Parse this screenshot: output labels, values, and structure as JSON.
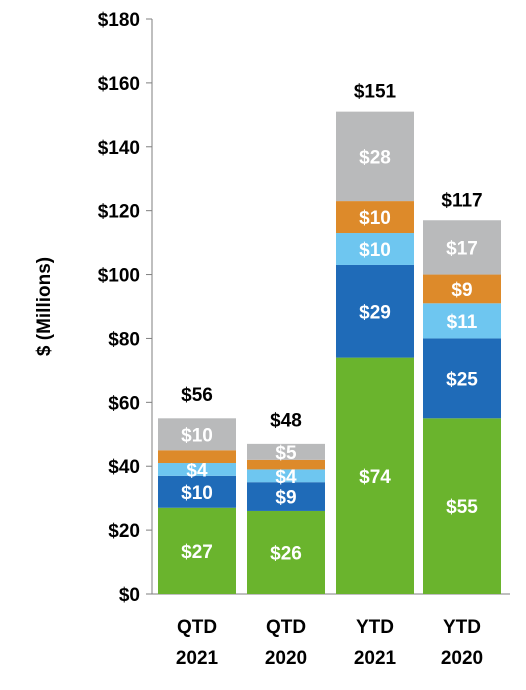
{
  "chart_data": {
    "type": "bar",
    "stacked": true,
    "ylabel": "$ (Millions)",
    "ylim": [
      0,
      180
    ],
    "yticks": [
      0,
      20,
      40,
      60,
      80,
      100,
      120,
      140,
      160,
      180
    ],
    "ytick_labels": [
      "$0",
      "$20",
      "$40",
      "$60",
      "$80",
      "$100",
      "$120",
      "$140",
      "$160",
      "$180"
    ],
    "grid": false,
    "categories": [
      [
        "QTD",
        "2021"
      ],
      [
        "QTD",
        "2020"
      ],
      [
        "YTD",
        "2021"
      ],
      [
        "YTD",
        "2020"
      ]
    ],
    "series": [
      {
        "color": "#6ab42d",
        "values": [
          27,
          26,
          74,
          55
        ],
        "labels": [
          "$27",
          "$26",
          "$74",
          "$55"
        ]
      },
      {
        "color": "#1f6bb8",
        "values": [
          10,
          9,
          29,
          25
        ],
        "labels": [
          "$10",
          "$9",
          "$29",
          "$25"
        ]
      },
      {
        "color": "#6ec6f0",
        "values": [
          4,
          4,
          10,
          11
        ],
        "labels": [
          "$4",
          "$4",
          "$10",
          "$11"
        ]
      },
      {
        "color": "#dd8a2a",
        "values": [
          4,
          3,
          10,
          9
        ],
        "labels": [
          "",
          "",
          "$10",
          "$9"
        ]
      },
      {
        "color": "#b9babb",
        "values": [
          10,
          5,
          28,
          17
        ],
        "labels": [
          "$10",
          "$5",
          "$28",
          "$17"
        ]
      }
    ],
    "totals": [
      56,
      48,
      151,
      117
    ],
    "total_labels": [
      "$56",
      "$48",
      "$151",
      "$117"
    ]
  }
}
